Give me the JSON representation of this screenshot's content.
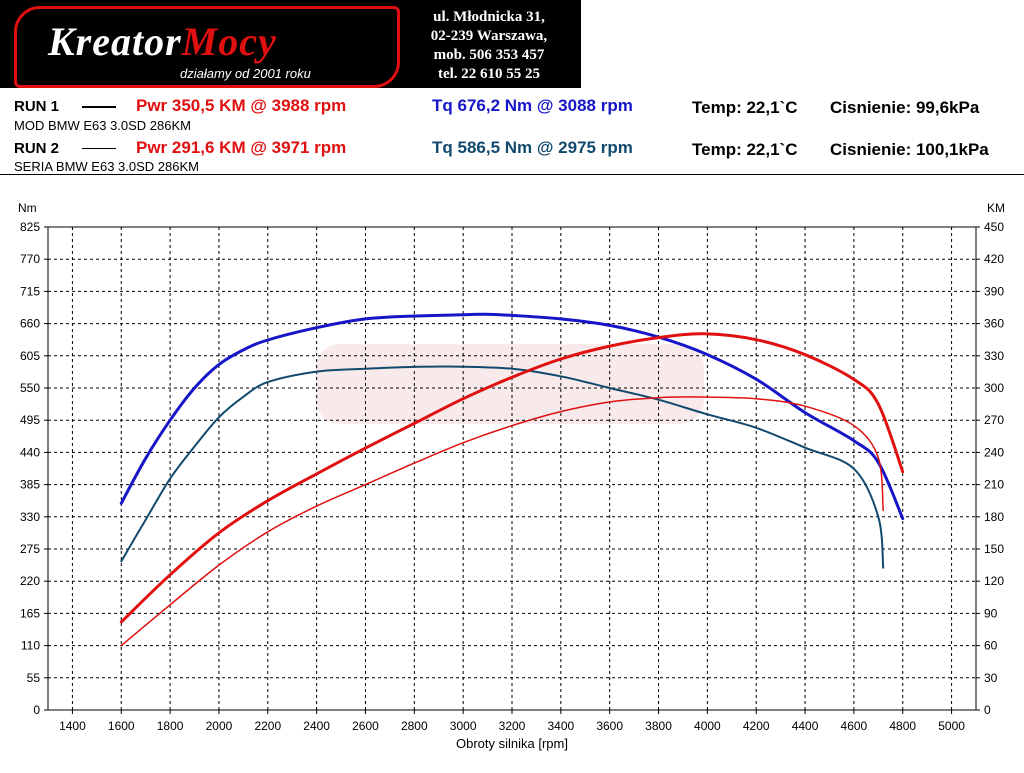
{
  "logo": {
    "brand_part1": "Kreator",
    "brand_part2": "Mocy",
    "slogan": "działamy od 2001 roku"
  },
  "address": {
    "line1": "ul. Młodnicka 31,",
    "line2": "02-239  Warszawa,",
    "line3": "mob.  506 353 457",
    "line4": "tel.  22 610 55 25"
  },
  "runs": [
    {
      "label": "RUN 1",
      "description": "MOD BMW E63 3.0SD 286KM",
      "pwr": "Pwr  350,5 KM @ 3988 rpm",
      "tq": "Tq 676,2 Nm @ 3088 rpm",
      "temp": "Temp: 22,1`C",
      "pressure": "Cisnienie: 99,6kPa",
      "color_pwr": "#e01010",
      "color_tq": "#1616c8"
    },
    {
      "label": "RUN 2",
      "description": "SERIA BMW E63 3.0SD 286KM",
      "pwr": "Pwr  291,6 KM @ 3971 rpm",
      "tq": "Tq 586,5 Nm @ 2975 rpm",
      "temp": "Temp: 22,1`C",
      "pressure": "Cisnienie: 100,1kPa",
      "color_pwr": "#e01010",
      "color_tq": "#124a6e"
    }
  ],
  "chart_data": {
    "type": "line",
    "xlabel": "Obroty silnika [rpm]",
    "ylabel_left": "Nm",
    "ylabel_right": "KM",
    "xlim": [
      1300,
      5100
    ],
    "ylim_left": [
      0,
      825
    ],
    "ylim_right": [
      0,
      450
    ],
    "x_ticks": [
      1400,
      1600,
      1800,
      2000,
      2200,
      2400,
      2600,
      2800,
      3000,
      3200,
      3400,
      3600,
      3800,
      4000,
      4200,
      4400,
      4600,
      4800,
      5000
    ],
    "y_ticks_left": [
      0,
      55,
      110,
      165,
      220,
      275,
      330,
      385,
      440,
      495,
      550,
      605,
      660,
      715,
      770,
      825
    ],
    "y_ticks_right": [
      0,
      30,
      60,
      90,
      120,
      150,
      180,
      210,
      240,
      270,
      300,
      330,
      360,
      390,
      420,
      450
    ],
    "grid": true,
    "series": [
      {
        "name": "RUN 1 Tq",
        "axis": "left",
        "color": "#1616c8",
        "width": 3,
        "x": [
          1600,
          1700,
          1800,
          1900,
          2000,
          2100,
          2200,
          2400,
          2600,
          2800,
          3000,
          3088,
          3200,
          3400,
          3600,
          3800,
          4000,
          4200,
          4400,
          4600,
          4700,
          4800
        ],
        "y": [
          353,
          430,
          495,
          550,
          590,
          615,
          632,
          653,
          668,
          673,
          675,
          676,
          674,
          668,
          657,
          637,
          607,
          565,
          508,
          460,
          423,
          327
        ]
      },
      {
        "name": "RUN 2 Tq",
        "axis": "left",
        "color": "#124a6e",
        "width": 2,
        "x": [
          1600,
          1700,
          1800,
          1900,
          2000,
          2100,
          2200,
          2400,
          2600,
          2800,
          2975,
          3200,
          3400,
          3600,
          3800,
          4000,
          4200,
          4400,
          4600,
          4700,
          4720
        ],
        "y": [
          254,
          325,
          395,
          450,
          500,
          535,
          560,
          578,
          583,
          586,
          586.5,
          583,
          570,
          550,
          530,
          505,
          482,
          448,
          412,
          330,
          243
        ]
      },
      {
        "name": "RUN 1 Pwr",
        "axis": "right",
        "color": "#e01010",
        "width": 3,
        "x": [
          1600,
          1800,
          2000,
          2200,
          2400,
          2600,
          2800,
          3000,
          3200,
          3400,
          3600,
          3800,
          3988,
          4200,
          4400,
          4600,
          4700,
          4800
        ],
        "y": [
          82,
          126,
          165,
          195,
          220,
          244,
          267,
          290,
          310,
          327,
          339,
          347,
          350.5,
          345,
          331,
          308,
          285,
          222
        ]
      },
      {
        "name": "RUN 2 Pwr",
        "axis": "right",
        "color": "#e01010",
        "width": 1.5,
        "x": [
          1600,
          1800,
          2000,
          2200,
          2400,
          2600,
          2800,
          3000,
          3200,
          3400,
          3600,
          3800,
          3971,
          4200,
          4400,
          4600,
          4700,
          4720
        ],
        "y": [
          60,
          98,
          135,
          166,
          190,
          210,
          230,
          249,
          265,
          278,
          287,
          291,
          291.6,
          290,
          283,
          265,
          235,
          186
        ]
      }
    ]
  }
}
